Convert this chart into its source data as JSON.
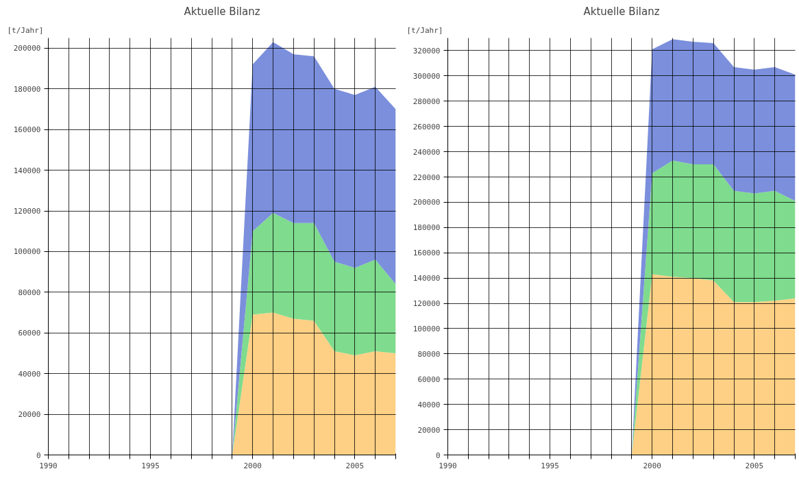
{
  "chart_data": [
    {
      "type": "area",
      "title": "Aktuelle Bilanz",
      "ylabel": "[t/Jahr]",
      "stacked": true,
      "x": [
        1999,
        2000,
        2001,
        2002,
        2003,
        2004,
        2005,
        2006,
        2007
      ],
      "series": [
        {
          "color": "#fdd085",
          "values": [
            0,
            69000,
            70000,
            67000,
            66000,
            51000,
            49000,
            51000,
            50000
          ]
        },
        {
          "color": "#7fdb8d",
          "values": [
            0,
            41000,
            49000,
            47000,
            48000,
            44000,
            43000,
            45000,
            34000
          ]
        },
        {
          "color": "#7b8fdc",
          "values": [
            0,
            82000,
            84000,
            83000,
            82000,
            85000,
            85000,
            85000,
            86000
          ]
        }
      ],
      "xlim": [
        1990,
        2007
      ],
      "xticks": [
        1990,
        {
          "value": 1991,
          "label": null
        },
        {
          "value": 1992,
          "label": null
        },
        {
          "value": 1993,
          "label": null
        },
        {
          "value": 1994,
          "label": null
        },
        1995,
        {
          "value": 1996,
          "label": null
        },
        {
          "value": 1997,
          "label": null
        },
        {
          "value": 1998,
          "label": null
        },
        {
          "value": 1999,
          "label": null
        },
        2000,
        {
          "value": 2001,
          "label": null
        },
        {
          "value": 2002,
          "label": null
        },
        {
          "value": 2003,
          "label": null
        },
        {
          "value": 2004,
          "label": null
        },
        2005,
        {
          "value": 2006,
          "label": null
        },
        {
          "value": 2007,
          "label": null
        }
      ],
      "ylim": [
        0,
        205000
      ],
      "yticks": [
        0,
        20000,
        40000,
        60000,
        80000,
        100000,
        120000,
        140000,
        160000,
        180000,
        200000
      ],
      "grid": true
    },
    {
      "type": "area",
      "title": "Aktuelle Bilanz",
      "ylabel": "[t/Jahr]",
      "stacked": true,
      "x": [
        1999,
        2000,
        2001,
        2002,
        2003,
        2004,
        2005,
        2006,
        2007
      ],
      "series": [
        {
          "color": "#fdd085",
          "values": [
            0,
            143000,
            141000,
            140000,
            138000,
            121000,
            121000,
            122000,
            124000
          ]
        },
        {
          "color": "#7fdb8d",
          "values": [
            0,
            80000,
            92000,
            90000,
            92000,
            88000,
            86000,
            87000,
            77000
          ]
        },
        {
          "color": "#7b8fdc",
          "values": [
            0,
            98000,
            96000,
            97000,
            96000,
            98000,
            98000,
            98000,
            100000
          ]
        }
      ],
      "xlim": [
        1990,
        2007
      ],
      "xticks": [
        1990,
        {
          "value": 1991,
          "label": null
        },
        {
          "value": 1992,
          "label": null
        },
        {
          "value": 1993,
          "label": null
        },
        {
          "value": 1994,
          "label": null
        },
        1995,
        {
          "value": 1996,
          "label": null
        },
        {
          "value": 1997,
          "label": null
        },
        {
          "value": 1998,
          "label": null
        },
        {
          "value": 1999,
          "label": null
        },
        2000,
        {
          "value": 2001,
          "label": null
        },
        {
          "value": 2002,
          "label": null
        },
        {
          "value": 2003,
          "label": null
        },
        {
          "value": 2004,
          "label": null
        },
        2005,
        {
          "value": 2006,
          "label": null
        },
        {
          "value": 2007,
          "label": null
        }
      ],
      "ylim": [
        0,
        330000
      ],
      "yticks": [
        0,
        20000,
        40000,
        60000,
        80000,
        100000,
        120000,
        140000,
        160000,
        180000,
        200000,
        220000,
        240000,
        260000,
        280000,
        300000,
        320000
      ],
      "grid": true
    }
  ]
}
